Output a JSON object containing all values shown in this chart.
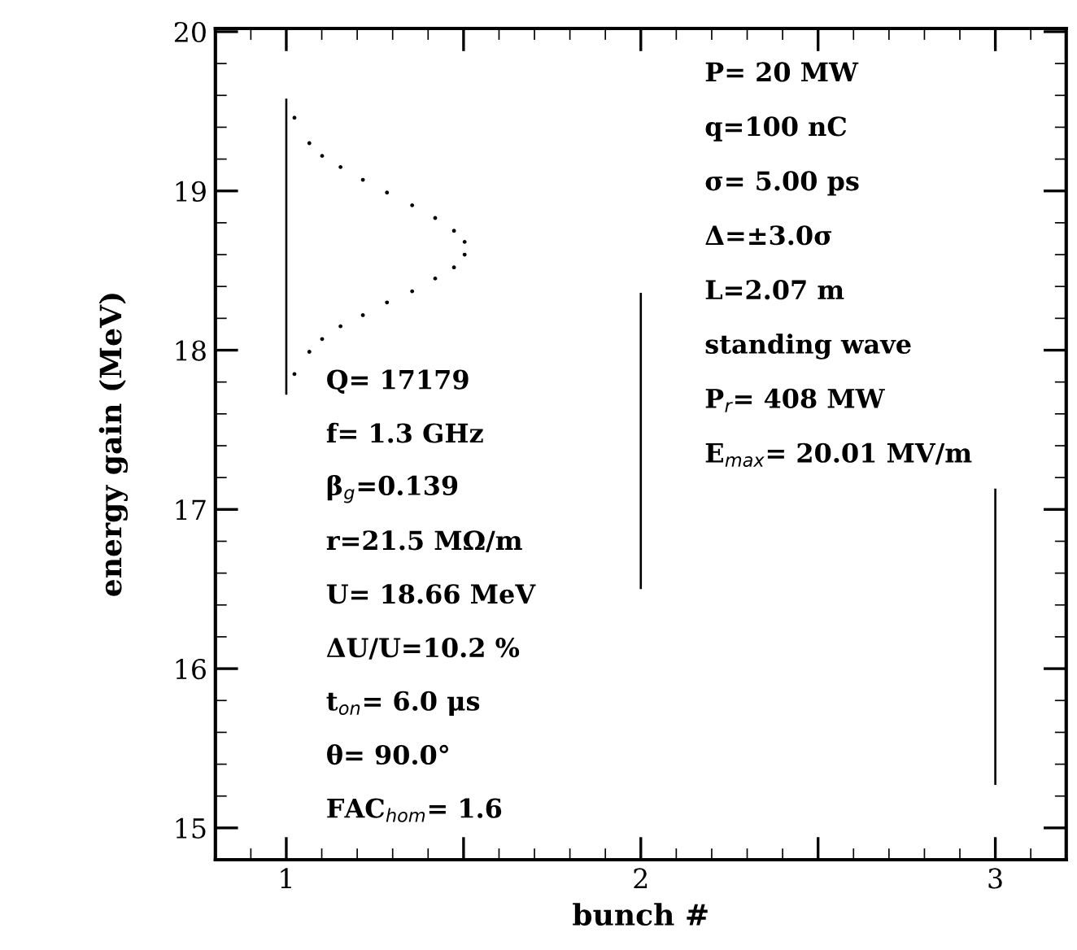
{
  "chart_data": {
    "type": "bar",
    "xlabel": "bunch #",
    "ylabel": "energy gain (MeV)",
    "x": [
      1,
      2,
      3
    ],
    "series": [
      {
        "color": "#000000",
        "base": [
          17.72,
          16.5,
          15.27
        ],
        "values": [
          1.86,
          1.86,
          1.86
        ]
      },
      {
        "type": "scatter",
        "color": "#000000",
        "marker": "circle",
        "x": [
          1.023,
          1.065,
          1.101,
          1.153,
          1.216,
          1.284,
          1.355,
          1.42,
          1.473,
          1.503,
          1.503,
          1.473,
          1.42,
          1.355,
          1.284,
          1.216,
          1.153,
          1.101,
          1.065,
          1.023
        ],
        "values": [
          19.46,
          19.3,
          19.22,
          19.15,
          19.07,
          18.99,
          18.91,
          18.83,
          18.75,
          18.68,
          18.6,
          18.52,
          18.45,
          18.37,
          18.3,
          18.22,
          18.15,
          18.07,
          17.99,
          17.85
        ]
      }
    ],
    "xlim": [
      0.8,
      3.2
    ],
    "ylim": [
      14.8,
      20.02
    ],
    "xticks": [
      1,
      {
        "value": 1.5,
        "label": null
      },
      2,
      {
        "value": 2.5,
        "label": null
      },
      3
    ],
    "yticks": [
      15,
      16,
      17,
      18,
      19,
      20
    ],
    "grid": false,
    "legend": false,
    "annotations": [
      "P= 20 MW",
      "q=100 nC",
      "σ= 5.00 ps",
      "Δ=±3.0σ",
      "L=2.07 m",
      "standing wave",
      "P$_{r}$= 408 MW",
      "E$_{max}$= 20.01 MV/m",
      "Q= 17179",
      "f= 1.3 GHz",
      "β$_{g}$=0.139",
      "r=21.5 MΩ/m",
      "U= 18.66 MeV",
      "ΔU/U=10.2 %",
      "t$_{on}$= 6.0 μs",
      "θ= 90.0°",
      "FAC$_{hom}$= 1.6"
    ]
  }
}
